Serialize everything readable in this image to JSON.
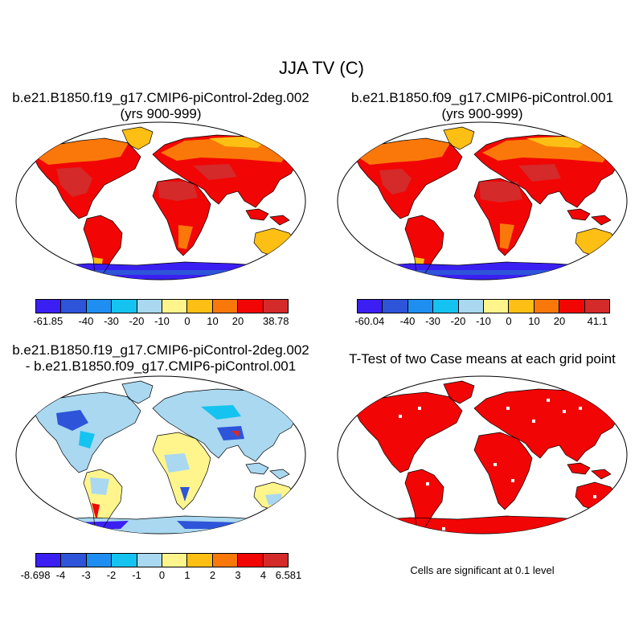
{
  "title": "JJA TV (C)",
  "panels": [
    {
      "id": "top-left",
      "title_line1": "b.e21.B1850.f19_g17.CMIP6-piControl-2deg.002",
      "title_line2": "(yrs 900-999)"
    },
    {
      "id": "top-right",
      "title_line1": "b.e21.B1850.f09_g17.CMIP6-piControl.001",
      "title_line2": "(yrs 900-999)"
    },
    {
      "id": "bottom-left",
      "title_line1": "b.e21.B1850.f19_g17.CMIP6-piControl-2deg.002",
      "title_line2": "- b.e21.B1850.f09_g17.CMIP6-piControl.001"
    },
    {
      "id": "bottom-right",
      "title_line1": "T-Test of two Case means at each grid point",
      "title_line2": ""
    }
  ],
  "colorbars": {
    "temp_colors": [
      "#3b1ff2",
      "#2e54d9",
      "#1e8ff0",
      "#15c3f0",
      "#a9d8f0",
      "#fff58c",
      "#fdbf14",
      "#fa780a",
      "#f20505",
      "#d42a2a"
    ],
    "diff_colors": [
      "#3b1ff2",
      "#2e54d9",
      "#1e8ff0",
      "#15c3f0",
      "#a9d8f0",
      "#fff58c",
      "#fdbf14",
      "#fa780a",
      "#f20505",
      "#d42a2a"
    ],
    "top_left_labels": [
      "-61.85",
      "-40",
      "-30",
      "-20",
      "-10",
      "0",
      "10",
      "20",
      "38.78"
    ],
    "top_right_labels": [
      "-60.04",
      "-40",
      "-30",
      "-20",
      "-10",
      "0",
      "10",
      "20",
      "41.1"
    ],
    "bottom_left_labels": [
      "-8.698",
      "-4",
      "-3",
      "-2",
      "-1",
      "0",
      "1",
      "2",
      "3",
      "4",
      "6.581"
    ]
  },
  "significance_note": "Cells are significant at 0.1 level",
  "significance_color": "#f20505"
}
